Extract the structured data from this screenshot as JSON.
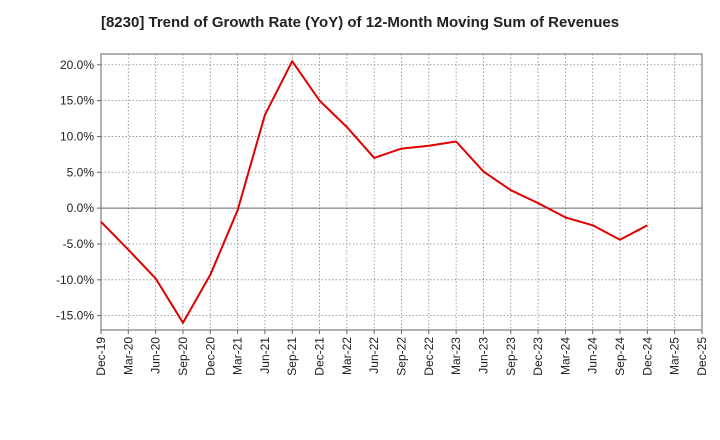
{
  "chart_data": {
    "type": "line",
    "title": "[8230]  Trend of Growth Rate (YoY) of 12-Month Moving Sum of Revenues",
    "xlabel": "",
    "ylabel": "",
    "x_ticks": [
      "Dec-19",
      "Mar-20",
      "Jun-20",
      "Sep-20",
      "Dec-20",
      "Mar-21",
      "Jun-21",
      "Sep-21",
      "Dec-21",
      "Mar-22",
      "Jun-22",
      "Sep-22",
      "Dec-22",
      "Mar-23",
      "Jun-23",
      "Sep-23",
      "Dec-23",
      "Mar-24",
      "Jun-24",
      "Sep-24",
      "Dec-24",
      "Mar-25",
      "Dec-25"
    ],
    "y_ticks": [
      20.0,
      15.0,
      10.0,
      5.0,
      0.0,
      -5.0,
      -10.0,
      -15.0
    ],
    "y_tick_labels": [
      "20.0%",
      "15.0%",
      "10.0%",
      "5.0%",
      "0.0%",
      "-5.0%",
      "-10.0%",
      "-15.0%"
    ],
    "ylim": [
      -17.0,
      21.5
    ],
    "grid": true,
    "colors": {
      "line": "#e00000",
      "grid": "#888888",
      "zero_line": "#666666",
      "axis": "#666666"
    },
    "series": [
      {
        "values": [
          {
            "x": "Dec-19",
            "y": -1.9
          },
          {
            "x": "Mar-20",
            "y": -5.8
          },
          {
            "x": "Jun-20",
            "y": -9.8
          },
          {
            "x": "Sep-20",
            "y": -16.0
          },
          {
            "x": "Dec-20",
            "y": -9.3
          },
          {
            "x": "Mar-21",
            "y": -0.3
          },
          {
            "x": "Jun-21",
            "y": 13.0
          },
          {
            "x": "Sep-21",
            "y": 20.5
          },
          {
            "x": "Dec-21",
            "y": 15.0
          },
          {
            "x": "Mar-22",
            "y": 11.3
          },
          {
            "x": "Jun-22",
            "y": 7.0
          },
          {
            "x": "Sep-22",
            "y": 8.3
          },
          {
            "x": "Dec-22",
            "y": 8.7
          },
          {
            "x": "Mar-23",
            "y": 9.3
          },
          {
            "x": "Jun-23",
            "y": 5.1
          },
          {
            "x": "Sep-23",
            "y": 2.5
          },
          {
            "x": "Dec-23",
            "y": 0.7
          },
          {
            "x": "Mar-24",
            "y": -1.3
          },
          {
            "x": "Jun-24",
            "y": -2.4
          },
          {
            "x": "Sep-24",
            "y": -4.4
          },
          {
            "x": "Dec-24",
            "y": -2.4
          }
        ]
      }
    ]
  }
}
